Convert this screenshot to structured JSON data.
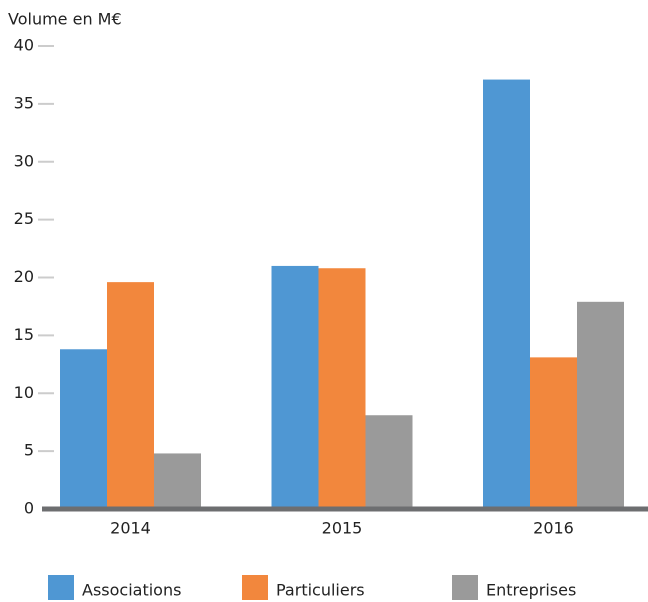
{
  "chart_data": {
    "type": "bar",
    "y_axis_label": "Volume en M€",
    "categories": [
      "2014",
      "2015",
      "2016"
    ],
    "series": [
      {
        "name": "Associations",
        "color": "#4f97d3",
        "values": [
          13.8,
          21.0,
          37.1
        ]
      },
      {
        "name": "Particuliers",
        "color": "#f2873d",
        "values": [
          19.6,
          20.8,
          13.1
        ]
      },
      {
        "name": "Entreprises",
        "color": "#9a9a9a",
        "values": [
          4.8,
          8.1,
          17.9
        ]
      }
    ],
    "ylim": [
      0,
      40
    ],
    "yticks": [
      0,
      5,
      10,
      15,
      20,
      25,
      30,
      35,
      40
    ],
    "legend": "bottom"
  }
}
